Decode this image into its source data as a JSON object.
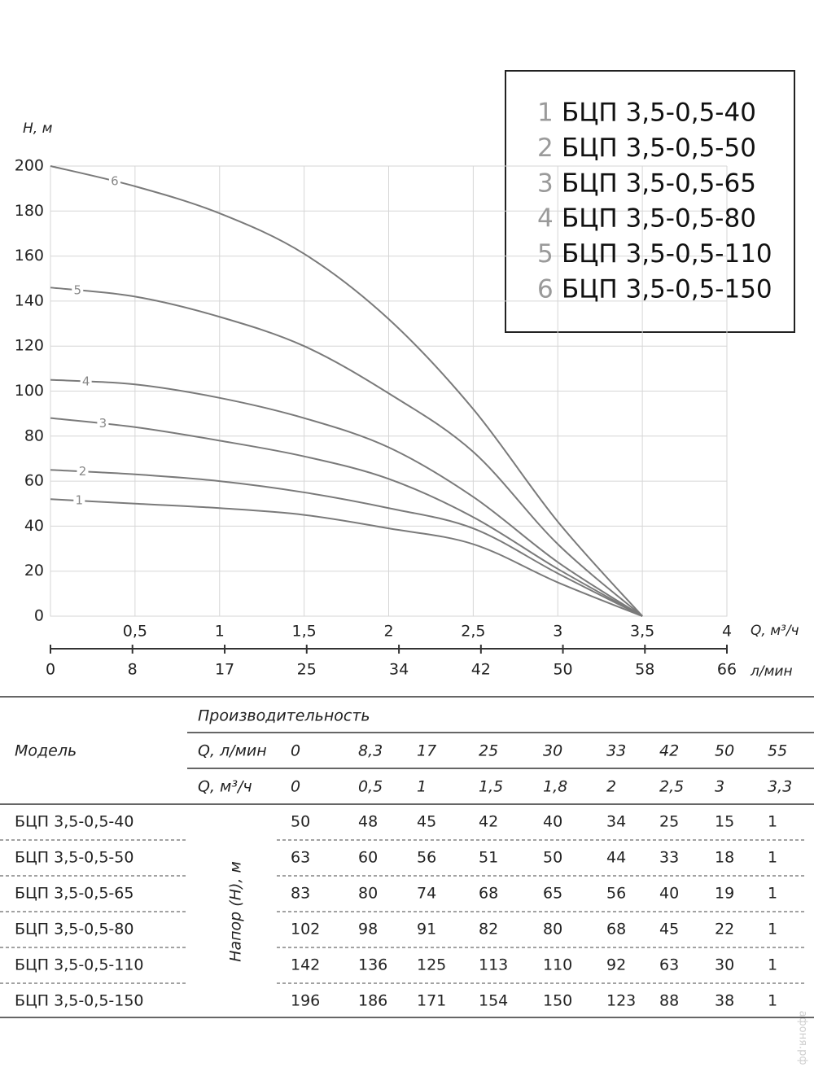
{
  "chart_data": {
    "type": "line",
    "ylabel": "H, м",
    "xlabel": "Q, м³/ч",
    "x2label": "л/мин",
    "x": [
      0,
      0.5,
      1,
      1.5,
      2,
      2.5,
      3,
      3.5
    ],
    "xlim": [
      0,
      4
    ],
    "xticks": [
      {
        "value": 0.5,
        "label": "0,5"
      },
      1,
      {
        "value": 1.5,
        "label": "1,5"
      },
      2,
      {
        "value": 2.5,
        "label": "2,5"
      },
      3,
      {
        "value": 3.5,
        "label": "3,5"
      },
      4
    ],
    "x2lim": [
      0,
      66
    ],
    "x2ticks": [
      0,
      8,
      17,
      25,
      34,
      42,
      50,
      58,
      66
    ],
    "ylim": [
      0,
      200
    ],
    "yticks": [
      0,
      20,
      40,
      60,
      80,
      100,
      120,
      140,
      160,
      180,
      200
    ],
    "grid": true,
    "series": [
      {
        "label": "1",
        "name": "БЦП 3,5-0,5-40",
        "color": "#7a7a7a",
        "values": [
          52,
          50,
          48,
          45,
          39,
          32,
          15,
          0
        ]
      },
      {
        "label": "2",
        "name": "БЦП 3,5-0,5-50",
        "color": "#7a7a7a",
        "values": [
          65,
          63,
          60,
          55,
          48,
          39,
          19,
          0
        ]
      },
      {
        "label": "3",
        "name": "БЦП 3,5-0,5-65",
        "color": "#7a7a7a",
        "values": [
          88,
          84,
          78,
          71,
          61,
          44,
          21,
          0
        ]
      },
      {
        "label": "4",
        "name": "БЦП 3,5-0,5-80",
        "color": "#7a7a7a",
        "values": [
          105,
          103,
          97,
          88,
          75,
          53,
          24,
          0
        ]
      },
      {
        "label": "5",
        "name": "БЦП 3,5-0,5-110",
        "color": "#7a7a7a",
        "values": [
          146,
          142,
          133,
          120,
          99,
          73,
          32,
          0
        ]
      },
      {
        "label": "6",
        "name": "БЦП 3,5-0,5-150",
        "color": "#7a7a7a",
        "values": [
          200,
          191,
          179,
          161,
          132,
          92,
          42,
          0
        ]
      }
    ]
  },
  "table": {
    "model_header": "Модель",
    "group_header": "Производительность",
    "flow_lmin_label": "Q, л/мин",
    "flow_lmin": [
      "0",
      "8,3",
      "17",
      "25",
      "30",
      "33",
      "42",
      "50",
      "55"
    ],
    "flow_m3h_label": "Q, м³/ч",
    "flow_m3h": [
      "0",
      "0,5",
      "1",
      "1,5",
      "1,8",
      "2",
      "2,5",
      "3",
      "3,3"
    ],
    "head_label": "Напор (H), м",
    "rows": [
      {
        "model": "БЦП 3,5-0,5-40",
        "values": [
          50,
          48,
          45,
          42,
          40,
          34,
          25,
          15,
          1
        ]
      },
      {
        "model": "БЦП 3,5-0,5-50",
        "values": [
          63,
          60,
          56,
          51,
          50,
          44,
          33,
          18,
          1
        ]
      },
      {
        "model": "БЦП 3,5-0,5-65",
        "values": [
          83,
          80,
          74,
          68,
          65,
          56,
          40,
          19,
          1
        ]
      },
      {
        "model": "БЦП 3,5-0,5-80",
        "values": [
          102,
          98,
          91,
          82,
          80,
          68,
          45,
          22,
          1
        ]
      },
      {
        "model": "БЦП 3,5-0,5-110",
        "values": [
          142,
          136,
          125,
          113,
          110,
          92,
          63,
          30,
          1
        ]
      },
      {
        "model": "БЦП 3,5-0,5-150",
        "values": [
          196,
          186,
          171,
          154,
          150,
          123,
          88,
          38,
          1
        ]
      }
    ]
  },
  "watermark": "афоня.рф"
}
